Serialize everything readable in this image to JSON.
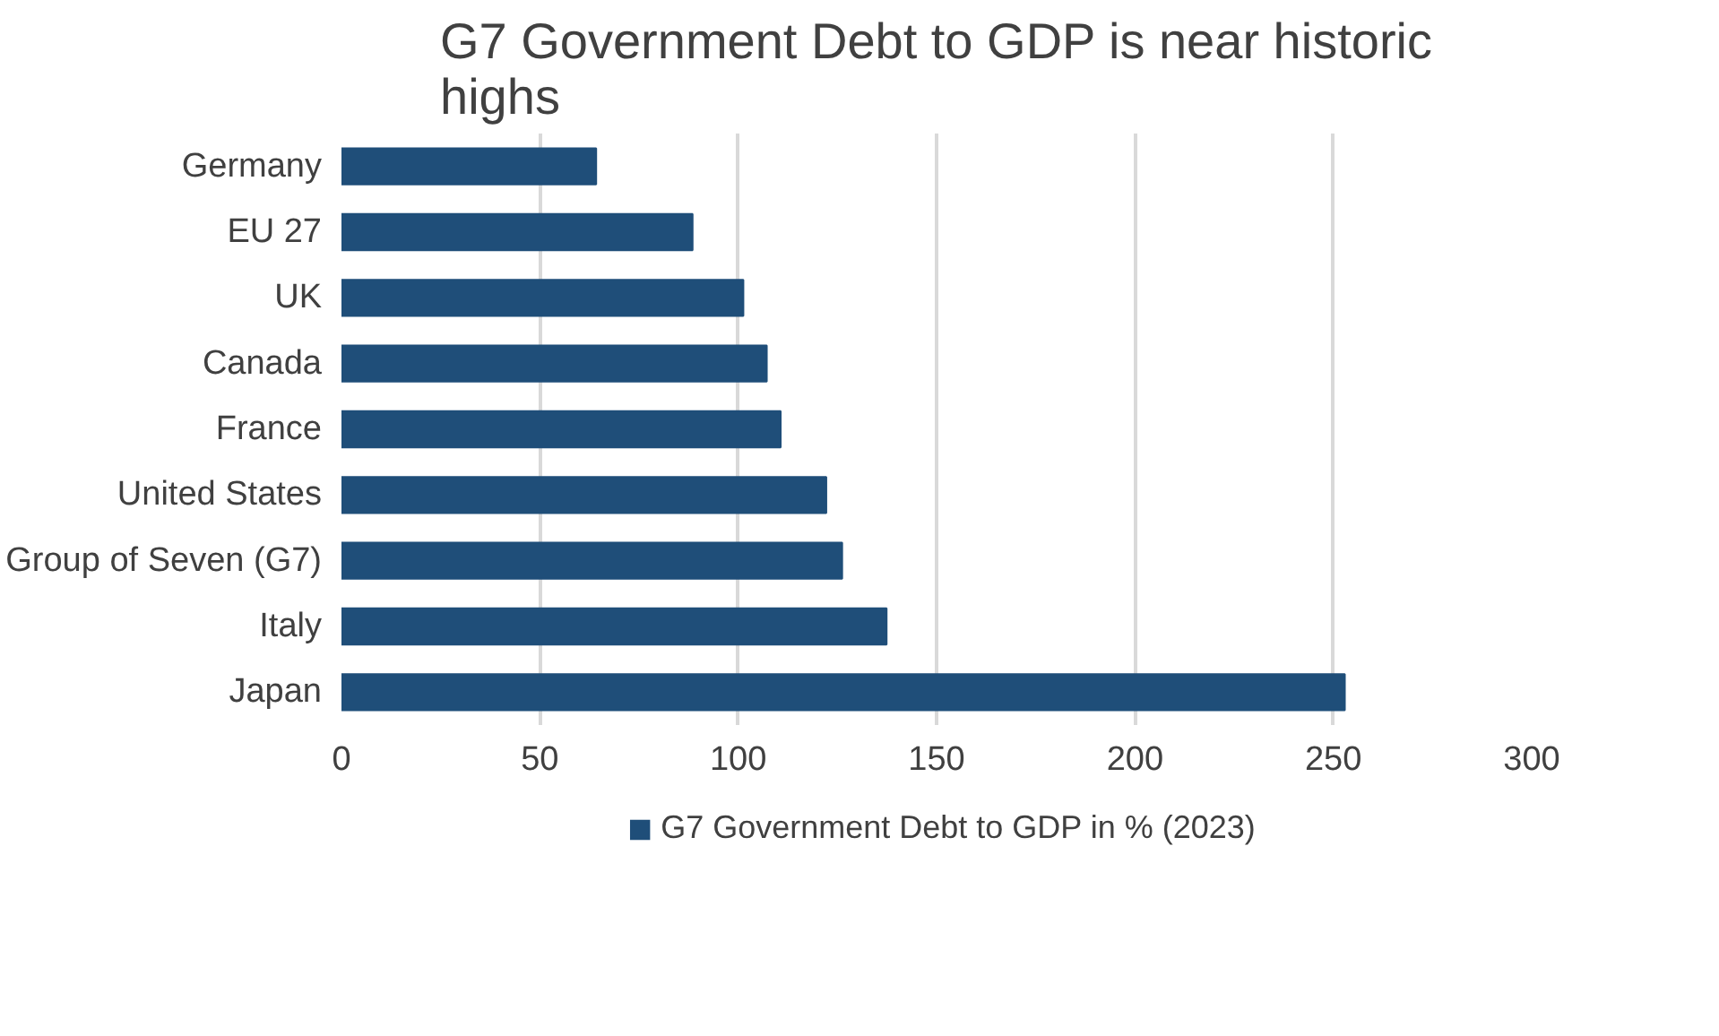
{
  "chart_data": {
    "type": "bar",
    "orientation": "horizontal",
    "title": "G7 Government Debt to GDP is near historic highs",
    "categories": [
      "Germany",
      "EU 27",
      "UK",
      "Canada",
      "France",
      "United States",
      "Group of Seven (G7)",
      "Italy",
      "Japan"
    ],
    "series": [
      {
        "name": "G7 Government Debt to GDP in % (2023)",
        "color": "#1f4e79",
        "values": [
          64.2,
          88.5,
          101.3,
          107.2,
          110.7,
          122.2,
          126.2,
          137.4,
          252.9
        ]
      }
    ],
    "xlim": [
      0,
      300
    ],
    "xticks": [
      0,
      50,
      100,
      150,
      200,
      250,
      300
    ],
    "grid": "x",
    "legend": "bottom"
  }
}
